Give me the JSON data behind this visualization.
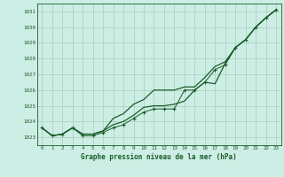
{
  "bg_color": "#cceee4",
  "grid_color": "#aaccbc",
  "line_color": "#1a5c28",
  "title": "Graphe pression niveau de la mer (hPa)",
  "xlim": [
    -0.5,
    23.5
  ],
  "ylim": [
    1022.5,
    1031.5
  ],
  "yticks": [
    1023,
    1024,
    1025,
    1026,
    1027,
    1028,
    1029,
    1030,
    1031
  ],
  "xticks": [
    0,
    1,
    2,
    3,
    4,
    5,
    6,
    7,
    8,
    9,
    10,
    11,
    12,
    13,
    14,
    15,
    16,
    17,
    18,
    19,
    20,
    21,
    22,
    23
  ],
  "series_smooth_upper": [
    1023.6,
    1023.1,
    1023.2,
    1023.6,
    1023.2,
    1023.2,
    1023.4,
    1024.2,
    1024.5,
    1025.1,
    1025.4,
    1026.0,
    1026.0,
    1026.0,
    1026.2,
    1026.2,
    1026.8,
    1027.5,
    1027.8,
    1028.7,
    1029.2,
    1030.0,
    1030.6,
    1031.1
  ],
  "series_smooth_lower": [
    1023.6,
    1023.1,
    1023.2,
    1023.6,
    1023.2,
    1023.2,
    1023.4,
    1023.8,
    1024.0,
    1024.4,
    1024.9,
    1025.0,
    1025.0,
    1025.1,
    1025.3,
    1026.0,
    1026.5,
    1026.4,
    1027.7,
    1028.7,
    1029.2,
    1030.0,
    1030.6,
    1031.1
  ],
  "series_markers": [
    1023.6,
    1023.1,
    1023.2,
    1023.6,
    1023.1,
    1023.1,
    1023.3,
    1023.6,
    1023.8,
    1024.2,
    1024.6,
    1024.8,
    1024.8,
    1024.8,
    1026.0,
    1026.0,
    1026.5,
    1027.3,
    1027.6,
    1028.7,
    1029.2,
    1030.0,
    1030.6,
    1031.1
  ]
}
